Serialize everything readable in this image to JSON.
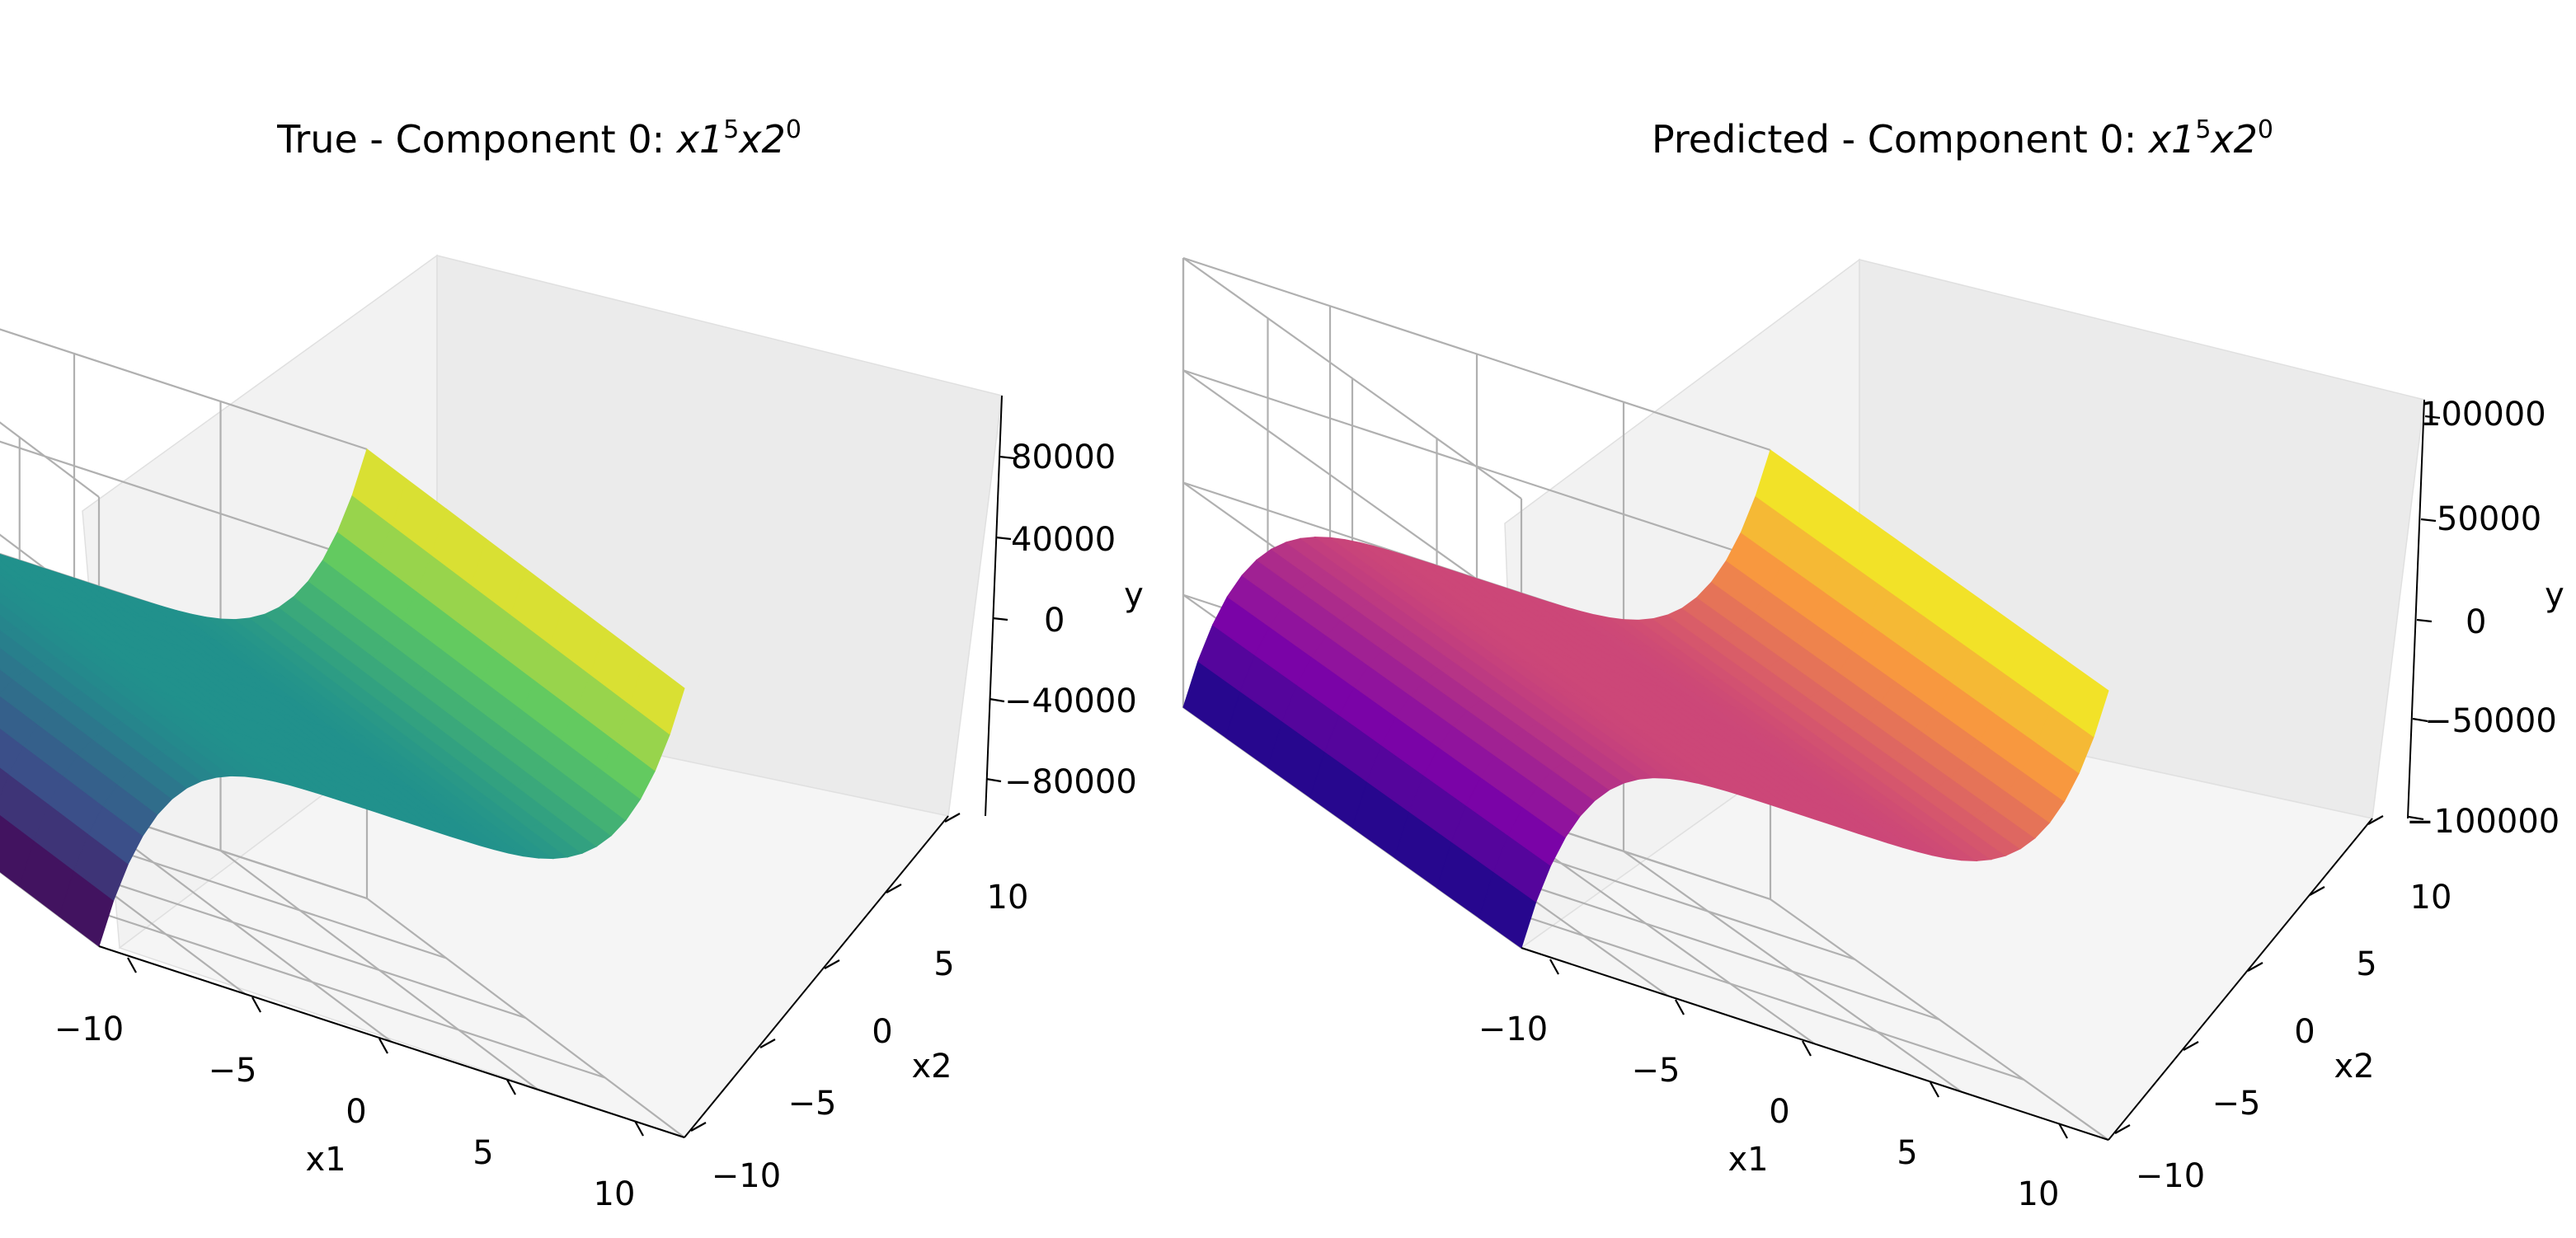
{
  "chart_data": [
    {
      "type": "surface",
      "title_prefix": "True - Component 0: ",
      "title_math": {
        "base1": "x1",
        "exp1": "5",
        "base2": "x2",
        "exp2": "0"
      },
      "xlabel": "x1",
      "ylabel": "x2",
      "zlabel": "y",
      "x_ticks": [
        "−10",
        "−5",
        "0",
        "5",
        "10"
      ],
      "y_ticks": [
        "−10",
        "−5",
        "0",
        "5",
        "10"
      ],
      "z_ticks": [
        "−80000",
        "−40000",
        "0",
        "40000",
        "80000"
      ],
      "xlim": [
        -10,
        10
      ],
      "ylim": [
        -10,
        10
      ],
      "zlim": [
        -100000,
        100000
      ],
      "colormap": "viridis",
      "colormap_stops": [
        "#440154",
        "#3b528b",
        "#21918c",
        "#5ec962",
        "#fde725"
      ],
      "function": "y = x1^5 * x2^0"
    },
    {
      "type": "surface",
      "title_prefix": "Predicted - Component 0: ",
      "title_math": {
        "base1": "x1",
        "exp1": "5",
        "base2": "x2",
        "exp2": "0"
      },
      "xlabel": "x1",
      "ylabel": "x2",
      "zlabel": "y",
      "x_ticks": [
        "−10",
        "−5",
        "0",
        "5",
        "10"
      ],
      "y_ticks": [
        "−10",
        "−5",
        "0",
        "5",
        "10"
      ],
      "z_ticks": [
        "−100000",
        "−50000",
        "0",
        "50000",
        "100000"
      ],
      "xlim": [
        -10,
        10
      ],
      "ylim": [
        -10,
        10
      ],
      "zlim": [
        -100000,
        100000
      ],
      "colormap": "plasma",
      "colormap_stops": [
        "#0d0887",
        "#7e03a8",
        "#cc4778",
        "#f89540",
        "#f0f921"
      ],
      "function": "y = x1^5 * x2^0"
    }
  ]
}
